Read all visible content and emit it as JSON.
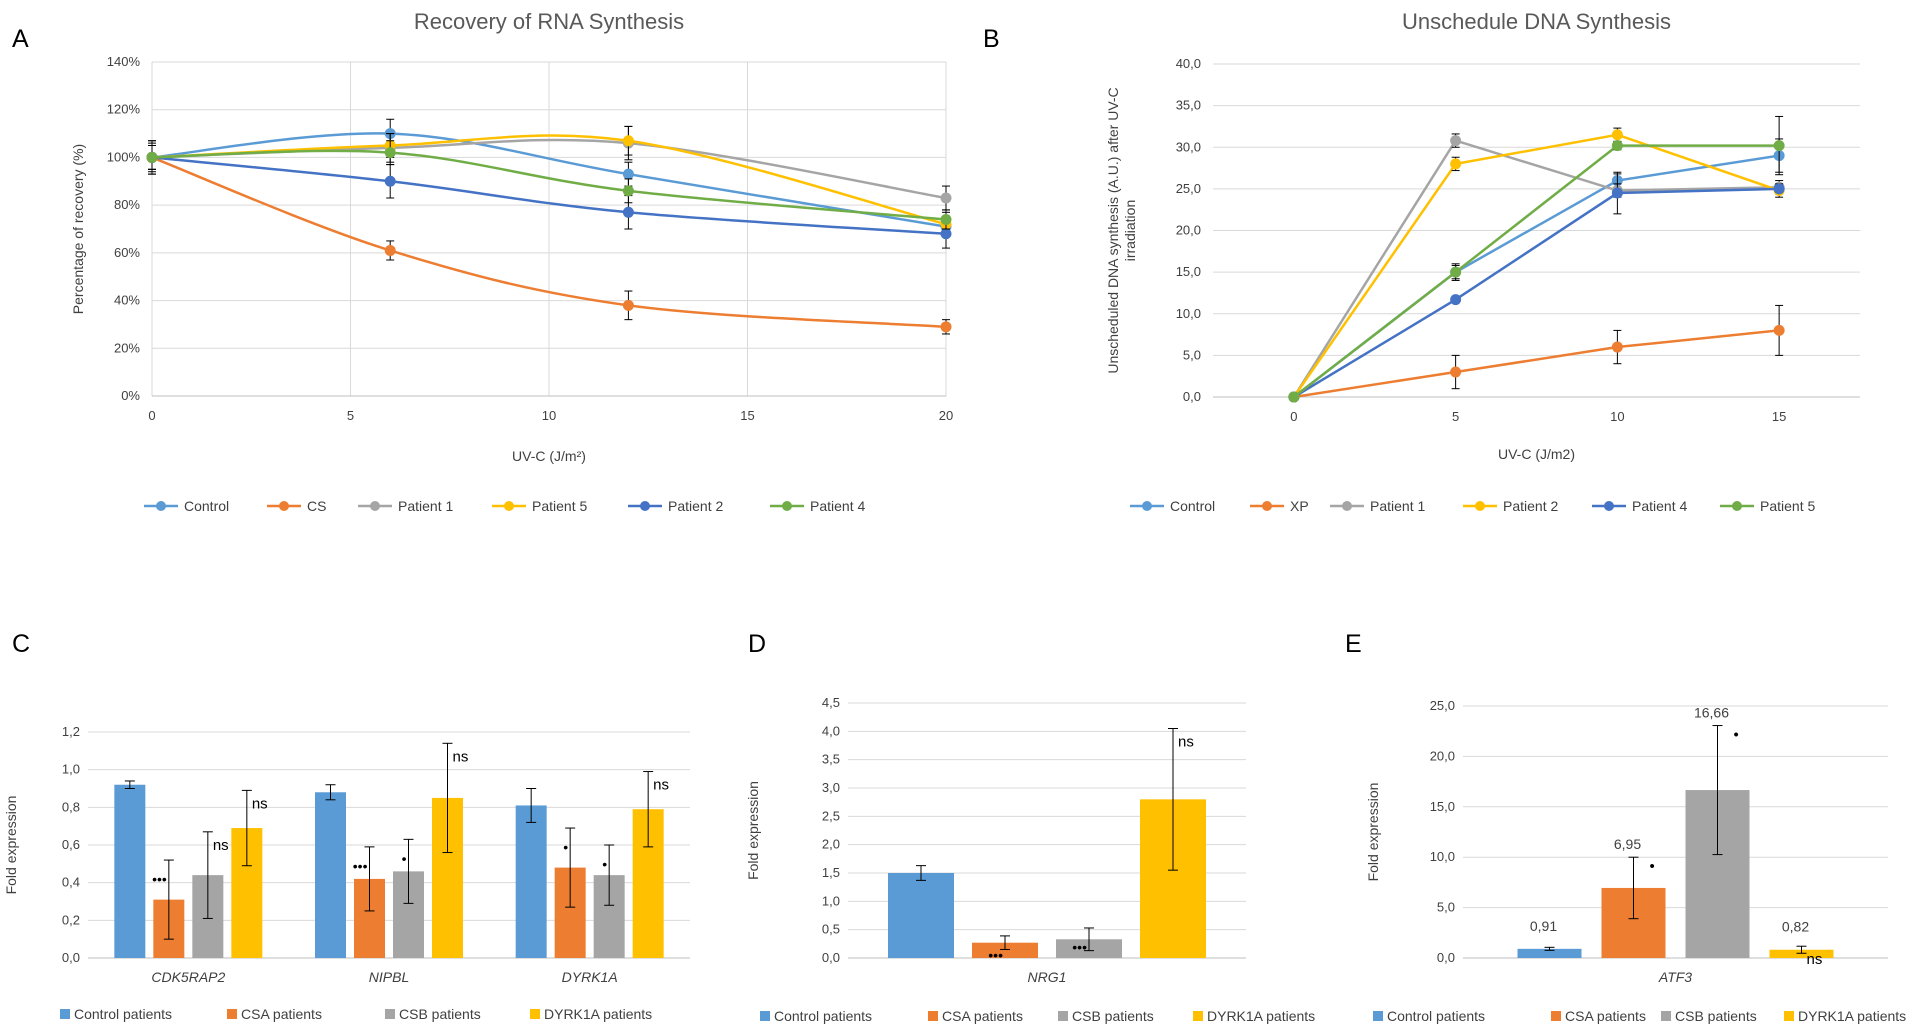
{
  "chart_data": [
    {
      "panel": "A",
      "type": "line",
      "title": "Recovery of RNA Synthesis",
      "xlabel": "UV-C (J/m²)",
      "ylabel": "Percentage of recovery (%)",
      "xlim": [
        0,
        20
      ],
      "ylim": [
        0,
        140
      ],
      "xticks": [
        "0",
        "5",
        "10",
        "15",
        "20"
      ],
      "yticks": [
        "0%",
        "20%",
        "40%",
        "60%",
        "80%",
        "100%",
        "120%",
        "140%"
      ],
      "grid": true,
      "legend": "bottom",
      "x": [
        0,
        6,
        12,
        20
      ],
      "series": [
        {
          "name": "Control",
          "color": "#5B9BD5",
          "values": [
            100,
            110,
            93,
            71
          ],
          "errors": [
            7,
            6,
            5,
            4
          ]
        },
        {
          "name": "CS",
          "color": "#ED7D31",
          "values": [
            100,
            61,
            38,
            29
          ],
          "errors": [
            6,
            4,
            6,
            3
          ]
        },
        {
          "name": "Patient 1",
          "color": "#A5A5A5",
          "values": [
            100,
            104,
            106,
            83
          ],
          "errors": [
            5,
            6,
            7,
            5
          ]
        },
        {
          "name": "Patient 5",
          "color": "#FFC000",
          "values": [
            100,
            105,
            107,
            72
          ],
          "errors": [
            5,
            5,
            6,
            5
          ]
        },
        {
          "name": "Patient 2",
          "color": "#4472C4",
          "values": [
            100,
            90,
            77,
            68
          ],
          "errors": [
            7,
            7,
            7,
            6
          ]
        },
        {
          "name": "Patient 4",
          "color": "#70AD47",
          "values": [
            100,
            102,
            86,
            74
          ],
          "errors": [
            5,
            5,
            5,
            4
          ]
        }
      ]
    },
    {
      "panel": "B",
      "type": "line",
      "title": "Unschedule DNA Synthesis",
      "xlabel": "UV-C (J/m2)",
      "ylabel": "Unscheduled DNA synthesis (A.U.) after UV-C irradiation",
      "ylabel_lines": [
        "Unscheduled DNA synthesis (A.U.) after UV-C",
        "irradiation"
      ],
      "categories": [
        "0",
        "5",
        "10",
        "15"
      ],
      "ylim": [
        0,
        40
      ],
      "yticks": [
        "0,0",
        "5,0",
        "10,0",
        "15,0",
        "20,0",
        "25,0",
        "30,0",
        "35,0",
        "40,0"
      ],
      "grid": true,
      "legend": "bottom",
      "series": [
        {
          "name": "Control",
          "color": "#5B9BD5",
          "values": [
            0,
            15,
            26,
            29
          ],
          "errors": [
            0,
            0.8,
            0.8,
            2
          ]
        },
        {
          "name": "XP",
          "color": "#ED7D31",
          "values": [
            0,
            3,
            6,
            8
          ],
          "errors": [
            0,
            2,
            2,
            3
          ]
        },
        {
          "name": "Patient 1",
          "color": "#A5A5A5",
          "values": [
            0,
            30.8,
            24.8,
            25.2
          ],
          "errors": [
            0,
            0.8,
            0.8,
            0.8
          ]
        },
        {
          "name": "Patient 2",
          "color": "#FFC000",
          "values": [
            0,
            28,
            31.5,
            24.8
          ],
          "errors": [
            0,
            0.8,
            0.8,
            0.8
          ]
        },
        {
          "name": "Patient 4",
          "color": "#4472C4",
          "values": [
            0,
            11.7,
            24.5,
            25
          ],
          "errors": [
            0,
            0.4,
            2.5,
            0.4
          ]
        },
        {
          "name": "Patient 5",
          "color": "#70AD47",
          "values": [
            0,
            15,
            30.2,
            30.2
          ],
          "errors": [
            0,
            1,
            0.5,
            3.5
          ]
        }
      ]
    },
    {
      "panel": "C",
      "type": "bar",
      "title": "",
      "xlabel": "",
      "ylabel": "Fold expression",
      "categories": [
        "CDK5RAP2",
        "NIPBL",
        "DYRK1A"
      ],
      "ylim": [
        0,
        1.2
      ],
      "yticks": [
        "0,0",
        "0,2",
        "0,4",
        "0,6",
        "0,8",
        "1,0",
        "1,2"
      ],
      "grid": true,
      "legend": "bottom",
      "series": [
        {
          "name": "Control patients",
          "color": "#5B9BD5",
          "values": [
            0.92,
            0.88,
            0.81
          ],
          "errors": [
            0.02,
            0.04,
            0.09
          ],
          "annotations": [
            "",
            "",
            ""
          ]
        },
        {
          "name": "CSA patients",
          "color": "#ED7D31",
          "values": [
            0.31,
            0.42,
            0.48
          ],
          "errors": [
            0.21,
            0.17,
            0.21
          ],
          "annotations": [
            "•••",
            "•••",
            "•"
          ]
        },
        {
          "name": "CSB patients",
          "color": "#A5A5A5",
          "values": [
            0.44,
            0.46,
            0.44
          ],
          "errors": [
            0.23,
            0.17,
            0.16
          ],
          "annotations": [
            "ns",
            "•",
            "•"
          ]
        },
        {
          "name": "DYRK1A patients",
          "color": "#FFC000",
          "values": [
            0.69,
            0.85,
            0.79
          ],
          "errors": [
            0.2,
            0.29,
            0.2
          ],
          "annotations": [
            "ns",
            "ns",
            "ns"
          ]
        }
      ]
    },
    {
      "panel": "D",
      "type": "bar",
      "title": "",
      "xlabel": "",
      "ylabel": "Fold expression",
      "categories": [
        "NRG1"
      ],
      "ylim": [
        0,
        4.5
      ],
      "yticks": [
        "0,0",
        "0,5",
        "1,0",
        "1,5",
        "2,0",
        "2,5",
        "3,0",
        "3,5",
        "4,0",
        "4,5"
      ],
      "grid": true,
      "legend": "bottom",
      "series": [
        {
          "name": "Control patients",
          "color": "#5B9BD5",
          "values": [
            1.5
          ],
          "errors": [
            0.13
          ],
          "annotations": [
            ""
          ]
        },
        {
          "name": "CSA patients",
          "color": "#ED7D31",
          "values": [
            0.27
          ],
          "errors": [
            0.12
          ],
          "annotations": [
            "•••"
          ]
        },
        {
          "name": "CSB patients",
          "color": "#A5A5A5",
          "values": [
            0.33
          ],
          "errors": [
            0.2
          ],
          "annotations": [
            "•••"
          ]
        },
        {
          "name": "DYRK1A patients",
          "color": "#FFC000",
          "values": [
            2.8
          ],
          "errors": [
            1.25
          ],
          "annotations": [
            "ns"
          ]
        }
      ]
    },
    {
      "panel": "E",
      "type": "bar",
      "title": "",
      "xlabel": "",
      "ylabel": "Fold expression",
      "categories": [
        "ATF3"
      ],
      "ylim": [
        0,
        25
      ],
      "yticks": [
        "0,0",
        "5,0",
        "10,0",
        "15,0",
        "20,0",
        "25,0"
      ],
      "grid": true,
      "legend": "bottom",
      "series": [
        {
          "name": "Control patients",
          "color": "#5B9BD5",
          "values": [
            0.91
          ],
          "errors": [
            0.15
          ],
          "labels": [
            "0,91"
          ],
          "annotations": [
            ""
          ]
        },
        {
          "name": "CSA patients",
          "color": "#ED7D31",
          "values": [
            6.95
          ],
          "errors": [
            3.05
          ],
          "labels": [
            "6,95"
          ],
          "annotations": [
            "•"
          ]
        },
        {
          "name": "CSB patients",
          "color": "#A5A5A5",
          "values": [
            16.66
          ],
          "errors": [
            6.4
          ],
          "labels": [
            "16,66"
          ],
          "annotations": [
            "•"
          ]
        },
        {
          "name": "DYRK1A patients",
          "color": "#FFC000",
          "values": [
            0.82
          ],
          "errors": [
            0.35
          ],
          "labels": [
            "0,82"
          ],
          "annotations": [
            "ns"
          ]
        }
      ]
    }
  ]
}
